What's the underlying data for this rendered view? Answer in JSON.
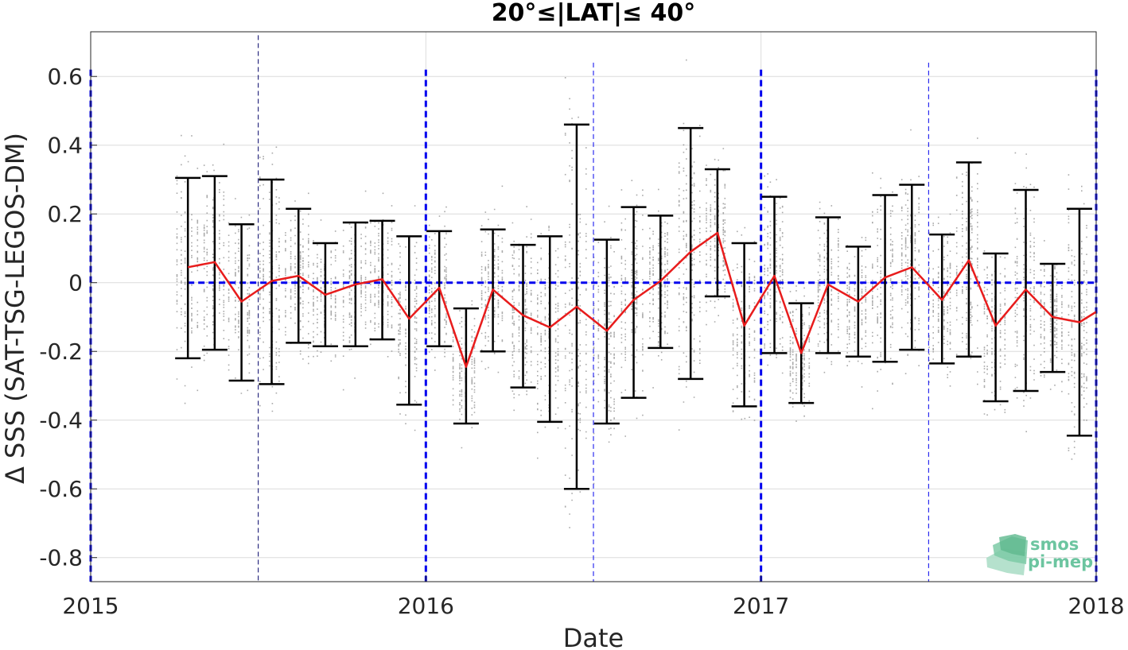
{
  "chart_data": {
    "type": "line",
    "title": "20°≤|LAT|≤ 40°",
    "xlabel": "Date",
    "ylabel": "Δ SSS (SAT-TSG-LEGOS-DM)",
    "xlim": [
      2015.0,
      2018.0
    ],
    "ylim": [
      -0.87,
      0.73
    ],
    "x_ticks": [
      "2015",
      "2016",
      "2017",
      "2018"
    ],
    "y_ticks": [
      "-0.8",
      "-0.6",
      "-0.4",
      "-0.2",
      "0",
      "0.2",
      "0.4",
      "0.6"
    ],
    "grid": true,
    "reference_line": 0,
    "colors": {
      "mean_line": "#e81c1c",
      "error_bars": "#000000",
      "reference": "#0000ee",
      "scatter": "#8c8c8c",
      "grid": "#dcdcdc",
      "logo": "#6cc5a0"
    },
    "series": [
      {
        "x": [
          2015.29,
          2015.37,
          2015.45,
          2015.54,
          2015.62,
          2015.7,
          2015.79,
          2015.87,
          2015.95,
          2016.04,
          2016.12,
          2016.2,
          2016.29,
          2016.37,
          2016.45,
          2016.54,
          2016.62,
          2016.7,
          2016.79,
          2016.87,
          2016.95,
          2017.04,
          2017.12,
          2017.2,
          2017.29,
          2017.37,
          2017.45,
          2017.54,
          2017.62,
          2017.7,
          2017.79,
          2017.87,
          2017.95,
          2018.0
        ],
        "y": [
          0.045,
          0.06,
          -0.055,
          0.005,
          0.02,
          -0.035,
          -0.005,
          0.01,
          -0.105,
          -0.015,
          -0.245,
          -0.02,
          -0.095,
          -0.13,
          -0.07,
          -0.14,
          -0.05,
          0.005,
          0.09,
          0.145,
          -0.125,
          0.02,
          -0.205,
          -0.005,
          -0.055,
          0.015,
          0.045,
          -0.05,
          0.065,
          -0.125,
          -0.02,
          -0.1,
          -0.115,
          -0.085
        ],
        "upper": [
          0.305,
          0.31,
          0.17,
          0.3,
          0.215,
          0.115,
          0.175,
          0.18,
          0.135,
          0.15,
          -0.075,
          0.155,
          0.11,
          0.135,
          0.46,
          0.125,
          0.22,
          0.195,
          0.45,
          0.33,
          0.115,
          0.25,
          -0.06,
          0.19,
          0.105,
          0.255,
          0.285,
          0.14,
          0.35,
          0.085,
          0.27,
          0.055,
          0.215,
          null
        ],
        "lower": [
          -0.22,
          -0.195,
          -0.285,
          -0.295,
          -0.175,
          -0.185,
          -0.185,
          -0.165,
          -0.355,
          -0.185,
          -0.41,
          -0.2,
          -0.305,
          -0.405,
          -0.6,
          -0.41,
          -0.335,
          -0.19,
          -0.28,
          -0.04,
          -0.36,
          -0.205,
          -0.35,
          -0.205,
          -0.215,
          -0.23,
          -0.195,
          -0.235,
          -0.215,
          -0.345,
          -0.315,
          -0.26,
          -0.445,
          null
        ]
      }
    ],
    "vertical_markers": [
      {
        "x": 2015.0,
        "style": "thick"
      },
      {
        "x": 2015.5,
        "style": "thin"
      },
      {
        "x": 2016.0,
        "style": "thick"
      },
      {
        "x": 2016.5,
        "style": "thin"
      },
      {
        "x": 2017.0,
        "style": "thick"
      },
      {
        "x": 2017.5,
        "style": "thin"
      },
      {
        "x": 2018.0,
        "style": "thick"
      }
    ]
  },
  "logo": {
    "line1": "smos",
    "line2": "pi-mep"
  }
}
